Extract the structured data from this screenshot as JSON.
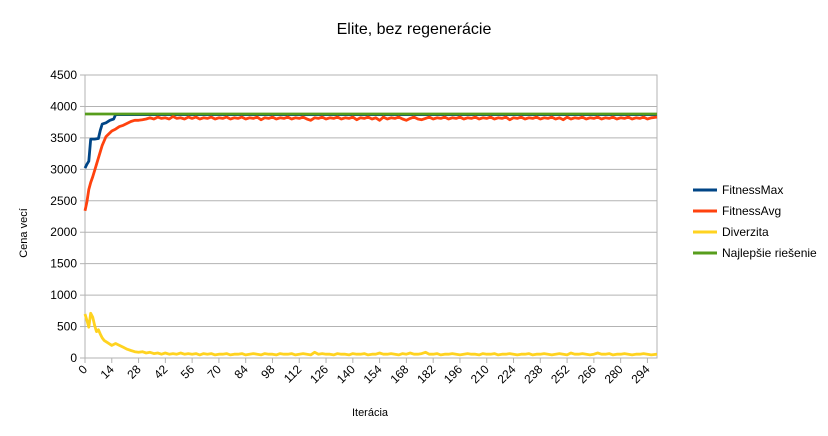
{
  "chart_data": {
    "type": "line",
    "title": "Elite, bez regenerácie",
    "xlabel": "Iterácia",
    "ylabel": "Cena vecí",
    "ylim": [
      0,
      4500
    ],
    "yticks": [
      0,
      500,
      1000,
      1500,
      2000,
      2500,
      3000,
      3500,
      4000,
      4500
    ],
    "xlim": [
      0,
      299
    ],
    "xticks": [
      0,
      14,
      28,
      42,
      56,
      70,
      84,
      98,
      112,
      126,
      140,
      154,
      168,
      182,
      196,
      210,
      224,
      238,
      252,
      266,
      280,
      294
    ],
    "grid": true,
    "legend_position": "right",
    "series": [
      {
        "name": "FitnessMax",
        "color": "#004586",
        "points": [
          [
            0,
            3020
          ],
          [
            1,
            3080
          ],
          [
            2,
            3130
          ],
          [
            3,
            3480
          ],
          [
            5,
            3480
          ],
          [
            7,
            3490
          ],
          [
            8,
            3620
          ],
          [
            9,
            3720
          ],
          [
            11,
            3740
          ],
          [
            13,
            3780
          ],
          [
            15,
            3800
          ],
          [
            16,
            3870
          ],
          [
            299,
            3870
          ]
        ]
      },
      {
        "name": "FitnessAvg",
        "color": "#ff420e",
        "points": [
          [
            0,
            2340
          ],
          [
            1,
            2480
          ],
          [
            2,
            2680
          ],
          [
            3,
            2790
          ],
          [
            4,
            2880
          ],
          [
            5,
            2980
          ],
          [
            6,
            3080
          ],
          [
            7,
            3180
          ],
          [
            8,
            3280
          ],
          [
            9,
            3380
          ],
          [
            10,
            3450
          ],
          [
            11,
            3520
          ],
          [
            12,
            3550
          ],
          [
            14,
            3610
          ],
          [
            16,
            3640
          ],
          [
            18,
            3680
          ],
          [
            20,
            3700
          ],
          [
            22,
            3730
          ],
          [
            24,
            3760
          ],
          [
            26,
            3780
          ],
          [
            28,
            3780
          ],
          [
            30,
            3790
          ],
          [
            32,
            3800
          ],
          [
            34,
            3820
          ],
          [
            36,
            3800
          ],
          [
            38,
            3830
          ],
          [
            40,
            3810
          ],
          [
            42,
            3820
          ],
          [
            44,
            3800
          ],
          [
            46,
            3840
          ],
          [
            48,
            3810
          ],
          [
            50,
            3820
          ],
          [
            52,
            3800
          ],
          [
            54,
            3830
          ],
          [
            56,
            3810
          ],
          [
            58,
            3830
          ],
          [
            60,
            3800
          ],
          [
            62,
            3820
          ],
          [
            64,
            3810
          ],
          [
            66,
            3830
          ],
          [
            68,
            3800
          ],
          [
            70,
            3820
          ],
          [
            72,
            3810
          ],
          [
            74,
            3830
          ],
          [
            76,
            3800
          ],
          [
            78,
            3820
          ],
          [
            80,
            3810
          ],
          [
            82,
            3830
          ],
          [
            84,
            3800
          ],
          [
            86,
            3820
          ],
          [
            88,
            3810
          ],
          [
            90,
            3830
          ],
          [
            92,
            3790
          ],
          [
            94,
            3820
          ],
          [
            96,
            3810
          ],
          [
            98,
            3830
          ],
          [
            100,
            3800
          ],
          [
            102,
            3820
          ],
          [
            104,
            3810
          ],
          [
            106,
            3830
          ],
          [
            108,
            3800
          ],
          [
            110,
            3820
          ],
          [
            112,
            3810
          ],
          [
            114,
            3830
          ],
          [
            116,
            3800
          ],
          [
            118,
            3780
          ],
          [
            120,
            3820
          ],
          [
            122,
            3810
          ],
          [
            124,
            3830
          ],
          [
            126,
            3800
          ],
          [
            128,
            3820
          ],
          [
            130,
            3810
          ],
          [
            132,
            3830
          ],
          [
            134,
            3800
          ],
          [
            136,
            3820
          ],
          [
            138,
            3810
          ],
          [
            140,
            3830
          ],
          [
            142,
            3790
          ],
          [
            144,
            3820
          ],
          [
            146,
            3810
          ],
          [
            148,
            3830
          ],
          [
            150,
            3800
          ],
          [
            152,
            3820
          ],
          [
            154,
            3780
          ],
          [
            156,
            3830
          ],
          [
            158,
            3800
          ],
          [
            160,
            3820
          ],
          [
            162,
            3810
          ],
          [
            164,
            3830
          ],
          [
            166,
            3800
          ],
          [
            168,
            3780
          ],
          [
            170,
            3810
          ],
          [
            172,
            3830
          ],
          [
            174,
            3800
          ],
          [
            176,
            3790
          ],
          [
            178,
            3810
          ],
          [
            180,
            3830
          ],
          [
            182,
            3800
          ],
          [
            184,
            3820
          ],
          [
            186,
            3810
          ],
          [
            188,
            3830
          ],
          [
            190,
            3800
          ],
          [
            192,
            3820
          ],
          [
            194,
            3810
          ],
          [
            196,
            3830
          ],
          [
            198,
            3800
          ],
          [
            200,
            3820
          ],
          [
            202,
            3810
          ],
          [
            204,
            3830
          ],
          [
            206,
            3800
          ],
          [
            208,
            3820
          ],
          [
            210,
            3810
          ],
          [
            212,
            3830
          ],
          [
            214,
            3800
          ],
          [
            216,
            3820
          ],
          [
            218,
            3810
          ],
          [
            220,
            3830
          ],
          [
            222,
            3790
          ],
          [
            224,
            3820
          ],
          [
            226,
            3810
          ],
          [
            228,
            3830
          ],
          [
            230,
            3800
          ],
          [
            232,
            3820
          ],
          [
            234,
            3810
          ],
          [
            236,
            3830
          ],
          [
            238,
            3800
          ],
          [
            240,
            3820
          ],
          [
            242,
            3810
          ],
          [
            244,
            3830
          ],
          [
            246,
            3800
          ],
          [
            248,
            3820
          ],
          [
            250,
            3790
          ],
          [
            252,
            3830
          ],
          [
            254,
            3800
          ],
          [
            256,
            3820
          ],
          [
            258,
            3810
          ],
          [
            260,
            3830
          ],
          [
            262,
            3800
          ],
          [
            264,
            3820
          ],
          [
            266,
            3810
          ],
          [
            268,
            3830
          ],
          [
            270,
            3800
          ],
          [
            272,
            3820
          ],
          [
            274,
            3810
          ],
          [
            276,
            3830
          ],
          [
            278,
            3800
          ],
          [
            280,
            3820
          ],
          [
            282,
            3810
          ],
          [
            284,
            3830
          ],
          [
            286,
            3800
          ],
          [
            288,
            3820
          ],
          [
            290,
            3810
          ],
          [
            292,
            3830
          ],
          [
            294,
            3800
          ],
          [
            296,
            3820
          ],
          [
            299,
            3830
          ]
        ]
      },
      {
        "name": "Diverzita",
        "color": "#ffd320",
        "points": [
          [
            0,
            700
          ],
          [
            1,
            600
          ],
          [
            2,
            490
          ],
          [
            3,
            710
          ],
          [
            4,
            650
          ],
          [
            5,
            520
          ],
          [
            6,
            420
          ],
          [
            7,
            450
          ],
          [
            8,
            380
          ],
          [
            9,
            320
          ],
          [
            10,
            280
          ],
          [
            12,
            240
          ],
          [
            14,
            200
          ],
          [
            16,
            230
          ],
          [
            18,
            200
          ],
          [
            20,
            170
          ],
          [
            22,
            140
          ],
          [
            24,
            120
          ],
          [
            26,
            100
          ],
          [
            28,
            90
          ],
          [
            30,
            100
          ],
          [
            32,
            80
          ],
          [
            34,
            90
          ],
          [
            36,
            70
          ],
          [
            38,
            80
          ],
          [
            40,
            60
          ],
          [
            42,
            80
          ],
          [
            44,
            60
          ],
          [
            46,
            70
          ],
          [
            48,
            60
          ],
          [
            50,
            80
          ],
          [
            52,
            60
          ],
          [
            54,
            70
          ],
          [
            56,
            60
          ],
          [
            58,
            70
          ],
          [
            60,
            50
          ],
          [
            62,
            70
          ],
          [
            64,
            60
          ],
          [
            66,
            70
          ],
          [
            68,
            50
          ],
          [
            70,
            60
          ],
          [
            72,
            60
          ],
          [
            74,
            70
          ],
          [
            76,
            50
          ],
          [
            78,
            60
          ],
          [
            80,
            60
          ],
          [
            82,
            70
          ],
          [
            84,
            50
          ],
          [
            86,
            60
          ],
          [
            88,
            70
          ],
          [
            90,
            60
          ],
          [
            92,
            50
          ],
          [
            94,
            70
          ],
          [
            96,
            60
          ],
          [
            98,
            60
          ],
          [
            100,
            50
          ],
          [
            102,
            70
          ],
          [
            104,
            60
          ],
          [
            106,
            60
          ],
          [
            108,
            70
          ],
          [
            110,
            50
          ],
          [
            112,
            60
          ],
          [
            114,
            70
          ],
          [
            116,
            60
          ],
          [
            118,
            50
          ],
          [
            120,
            90
          ],
          [
            122,
            60
          ],
          [
            124,
            70
          ],
          [
            126,
            60
          ],
          [
            128,
            60
          ],
          [
            130,
            50
          ],
          [
            132,
            70
          ],
          [
            134,
            60
          ],
          [
            136,
            60
          ],
          [
            138,
            50
          ],
          [
            140,
            70
          ],
          [
            142,
            60
          ],
          [
            144,
            60
          ],
          [
            146,
            70
          ],
          [
            148,
            50
          ],
          [
            150,
            60
          ],
          [
            152,
            60
          ],
          [
            154,
            80
          ],
          [
            156,
            60
          ],
          [
            158,
            60
          ],
          [
            160,
            70
          ],
          [
            162,
            60
          ],
          [
            164,
            50
          ],
          [
            166,
            70
          ],
          [
            168,
            60
          ],
          [
            170,
            80
          ],
          [
            172,
            60
          ],
          [
            174,
            60
          ],
          [
            176,
            70
          ],
          [
            178,
            90
          ],
          [
            180,
            60
          ],
          [
            182,
            60
          ],
          [
            184,
            70
          ],
          [
            186,
            50
          ],
          [
            188,
            60
          ],
          [
            190,
            60
          ],
          [
            192,
            70
          ],
          [
            194,
            60
          ],
          [
            196,
            50
          ],
          [
            198,
            60
          ],
          [
            200,
            70
          ],
          [
            202,
            60
          ],
          [
            204,
            60
          ],
          [
            206,
            50
          ],
          [
            208,
            70
          ],
          [
            210,
            60
          ],
          [
            212,
            60
          ],
          [
            214,
            70
          ],
          [
            216,
            50
          ],
          [
            218,
            60
          ],
          [
            220,
            60
          ],
          [
            222,
            70
          ],
          [
            224,
            60
          ],
          [
            226,
            50
          ],
          [
            228,
            60
          ],
          [
            230,
            60
          ],
          [
            232,
            70
          ],
          [
            234,
            50
          ],
          [
            236,
            60
          ],
          [
            238,
            60
          ],
          [
            240,
            70
          ],
          [
            242,
            60
          ],
          [
            244,
            50
          ],
          [
            246,
            60
          ],
          [
            248,
            70
          ],
          [
            250,
            60
          ],
          [
            252,
            50
          ],
          [
            254,
            80
          ],
          [
            256,
            60
          ],
          [
            258,
            60
          ],
          [
            260,
            70
          ],
          [
            262,
            60
          ],
          [
            264,
            50
          ],
          [
            266,
            60
          ],
          [
            268,
            80
          ],
          [
            270,
            60
          ],
          [
            272,
            60
          ],
          [
            274,
            70
          ],
          [
            276,
            50
          ],
          [
            278,
            60
          ],
          [
            280,
            60
          ],
          [
            282,
            70
          ],
          [
            284,
            60
          ],
          [
            286,
            50
          ],
          [
            288,
            60
          ],
          [
            290,
            60
          ],
          [
            292,
            70
          ],
          [
            294,
            60
          ],
          [
            296,
            50
          ],
          [
            299,
            60
          ]
        ]
      },
      {
        "name": "Najlepšie riešenie",
        "color": "#579d1c",
        "points": [
          [
            0,
            3880
          ],
          [
            299,
            3880
          ]
        ]
      }
    ]
  }
}
